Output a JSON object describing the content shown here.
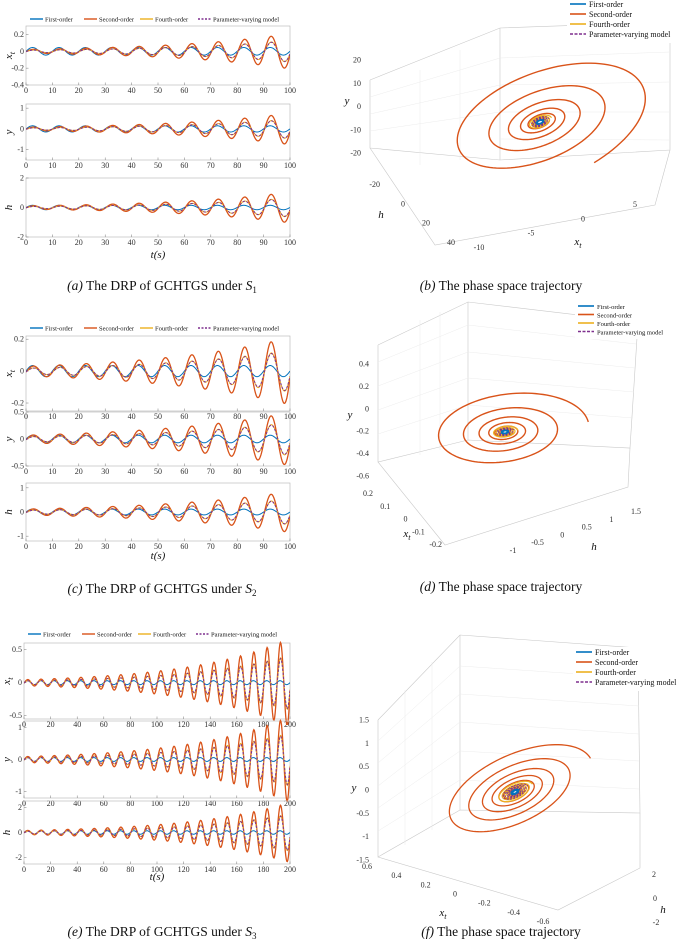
{
  "colors": {
    "first": "#0072BD",
    "second": "#D95319",
    "fourth": "#EDB120",
    "param": "#7E2F8E"
  },
  "legend": [
    "First-order",
    "Second-order",
    "Fourth-order",
    "Parameter-varying model"
  ],
  "captions": {
    "a": {
      "label": "(a)",
      "text": "The DRP of GCHTGS under",
      "sym": "S",
      "sub": "1"
    },
    "b": {
      "label": "(b)",
      "text": "The phase space trajectory"
    },
    "c": {
      "label": "(c)",
      "text": "The DRP of GCHTGS under",
      "sym": "S",
      "sub": "2"
    },
    "d": {
      "label": "(d)",
      "text": "The phase space trajectory"
    },
    "e": {
      "label": "(e)",
      "text": "The DRP of GCHTGS under",
      "sym": "S",
      "sub": "3"
    },
    "f": {
      "label": "(f)",
      "text": "The phase space trajectory"
    }
  },
  "chart_data": [
    {
      "id": "a",
      "type": "line",
      "title": "",
      "xlabel": "t(s)",
      "xlim": [
        0,
        100
      ],
      "xticks": [
        "0",
        "10",
        "20",
        "30",
        "40",
        "50",
        "60",
        "70",
        "80",
        "90",
        "100"
      ],
      "period": 10,
      "growth": 0.0225,
      "panels": [
        {
          "ylabel": "x_t",
          "ylim": [
            -0.4,
            0.3
          ],
          "yticks": [
            "0.2",
            "0",
            "-0.2",
            "-0.4"
          ],
          "yvals": [
            0.2,
            0,
            -0.2,
            -0.4
          ],
          "amp_first": 0.045,
          "amp_second": 0.022
        },
        {
          "ylabel": "y",
          "ylim": [
            -1.5,
            1.2
          ],
          "yticks": [
            "1",
            "0",
            "-1"
          ],
          "yvals": [
            1,
            0,
            -1
          ],
          "amp_first": 0.15,
          "amp_second": 0.08
        },
        {
          "ylabel": "h",
          "ylim": [
            -2,
            2
          ],
          "yticks": [
            "2",
            "0",
            "-2"
          ],
          "yvals": [
            2,
            0,
            -2
          ],
          "amp_first": 0.15,
          "amp_second": 0.11
        }
      ],
      "series": [
        "First-order",
        "Second-order",
        "Fourth-order",
        "Parameter-varying model"
      ]
    },
    {
      "id": "b",
      "type": "line",
      "axes": {
        "x": {
          "label": "x_t",
          "ticks": [
            "-10",
            "-5",
            "0",
            "5"
          ]
        },
        "y": {
          "label": "y",
          "ticks": [
            "20",
            "10",
            "0",
            "-10",
            "-20"
          ]
        },
        "z": {
          "label": "h",
          "ticks": [
            "-20",
            "0",
            "20",
            "40"
          ],
          "extra_ticks": [
            "-20"
          ]
        }
      },
      "series": [
        "First-order",
        "Second-order",
        "Fourth-order",
        "Parameter-varying model"
      ]
    },
    {
      "id": "c",
      "type": "line",
      "title": "",
      "xlabel": "t(s)",
      "xlim": [
        0,
        100
      ],
      "xticks": [
        "0",
        "10",
        "20",
        "30",
        "40",
        "50",
        "60",
        "70",
        "80",
        "90",
        "100"
      ],
      "period": 10,
      "growth": 0.0195,
      "panels": [
        {
          "ylabel": "x_t",
          "ylim": [
            -0.25,
            0.22
          ],
          "yticks": [
            "0.2",
            "0",
            "-0.2"
          ],
          "yvals": [
            0.2,
            0,
            -0.2
          ],
          "amp_first": 0.035,
          "amp_second": 0.03
        },
        {
          "ylabel": "y",
          "ylim": [
            -0.5,
            0.5
          ],
          "yticks": [
            "0.5",
            "0",
            "-0.5"
          ],
          "yvals": [
            0.5,
            0,
            -0.5
          ],
          "amp_first": 0.07,
          "amp_second": 0.07
        },
        {
          "ylabel": "h",
          "ylim": [
            -1.2,
            1.2
          ],
          "yticks": [
            "1",
            "0",
            "-1"
          ],
          "yvals": [
            1,
            0,
            -1
          ],
          "amp_first": 0.12,
          "amp_second": 0.12
        }
      ],
      "series": [
        "First-order",
        "Second-order",
        "Fourth-order",
        "Parameter-varying model"
      ]
    },
    {
      "id": "d",
      "type": "line",
      "axes": {
        "y": {
          "label": "y",
          "ticks": [
            "0.4",
            "0.2",
            "0",
            "-0.2",
            "-0.4",
            "-0.6"
          ]
        },
        "x": {
          "label": "x_t",
          "ticks": [
            "0.2",
            "0.1",
            "0",
            "-0.1",
            "-0.2"
          ]
        },
        "z": {
          "label": "h",
          "ticks": [
            "-1",
            "-0.5",
            "0",
            "0.5",
            "1",
            "1.5"
          ]
        }
      },
      "series": [
        "First-order",
        "Second-order",
        "Fourth-order",
        "Parameter-varying model"
      ]
    },
    {
      "id": "e",
      "type": "line",
      "title": "",
      "xlabel": "t(s)",
      "xlim": [
        0,
        200
      ],
      "xticks": [
        "0",
        "20",
        "40",
        "60",
        "80",
        "100",
        "120",
        "140",
        "160",
        "180",
        "200"
      ],
      "period": 10,
      "growth": 0.0135,
      "panels": [
        {
          "ylabel": "x_t",
          "ylim": [
            -0.55,
            0.6
          ],
          "yticks": [
            "0.5",
            "0",
            "-0.5"
          ],
          "yvals": [
            0.5,
            0,
            -0.5
          ],
          "amp_first": 0.03,
          "amp_second": 0.045
        },
        {
          "ylabel": "y",
          "ylim": [
            -1.2,
            1.2
          ],
          "yticks": [
            "1",
            "0",
            "-1"
          ],
          "yvals": [
            1,
            0,
            -1
          ],
          "amp_first": 0.06,
          "amp_second": 0.09
        },
        {
          "ylabel": "h",
          "ylim": [
            -2.5,
            2.5
          ],
          "yticks": [
            "2",
            "0",
            "-2"
          ],
          "yvals": [
            2,
            0,
            -2
          ],
          "amp_first": 0.14,
          "amp_second": 0.16
        }
      ],
      "series": [
        "First-order",
        "Second-order",
        "Fourth-order",
        "Parameter-varying model"
      ]
    },
    {
      "id": "f",
      "type": "line",
      "axes": {
        "y": {
          "label": "y",
          "ticks": [
            "1.5",
            "1",
            "0.5",
            "0",
            "-0.5",
            "-1",
            "-1.5"
          ]
        },
        "x": {
          "label": "x_t",
          "ticks": [
            "0.6",
            "0.4",
            "0.2",
            "0",
            "-0.2",
            "-0.4",
            "-0.6"
          ]
        },
        "z": {
          "label": "h",
          "ticks": [
            "2",
            "0",
            "-2"
          ]
        }
      },
      "series": [
        "First-order",
        "Second-order",
        "Fourth-order",
        "Parameter-varying model"
      ]
    }
  ]
}
